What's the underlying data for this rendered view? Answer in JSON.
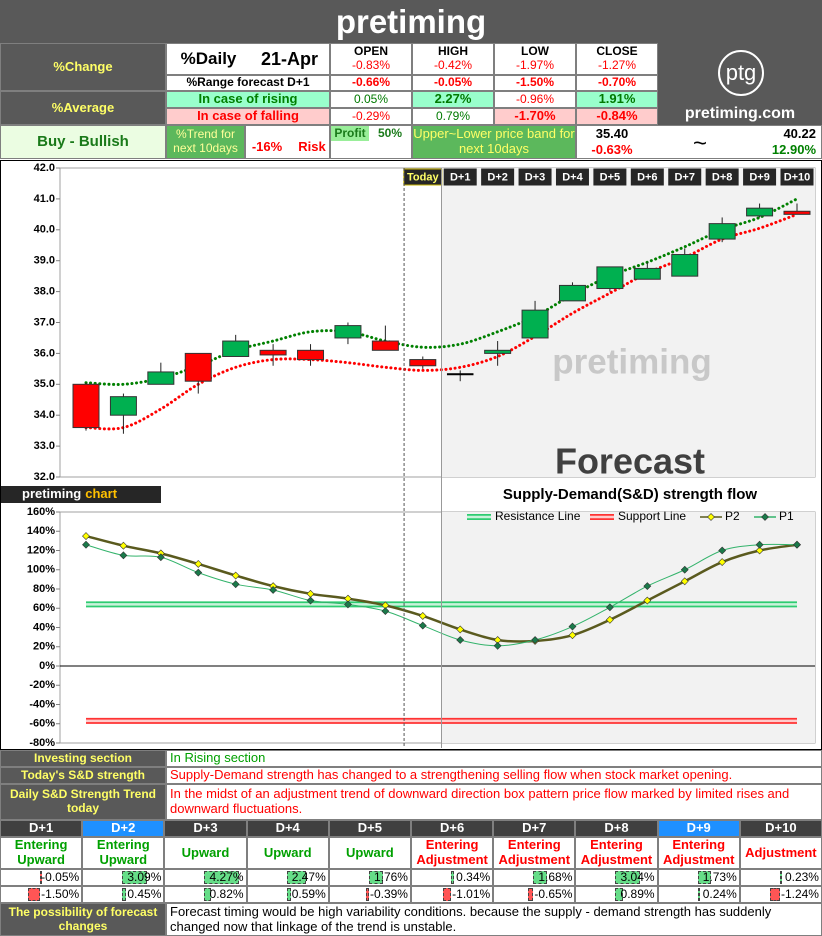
{
  "header": {
    "title": "pretiming"
  },
  "summary": {
    "change_label": "%Change",
    "average_label": "%Average",
    "daily_label": "%Daily",
    "date": "21-Apr",
    "columns": [
      "OPEN",
      "HIGH",
      "LOW",
      "CLOSE"
    ],
    "daily": [
      "-0.83%",
      "-0.42%",
      "-1.97%",
      "-1.27%"
    ],
    "range_label": "%Range forecast D+1",
    "range": [
      "-0.66%",
      "-0.05%",
      "-1.50%",
      "-0.70%"
    ],
    "rising_label": "In case of rising",
    "rising": [
      "0.05%",
      "2.27%",
      "-0.96%",
      "1.91%"
    ],
    "falling_label": "In case of falling",
    "falling": [
      "-0.29%",
      "0.79%",
      "-1.70%",
      "-0.84%"
    ]
  },
  "logo": {
    "mark": "ptg",
    "site": "pretiming.com"
  },
  "outlook": {
    "signal": "Buy - Bullish",
    "trend_label": "%Trend for next 10days",
    "risk_value": "-16%",
    "risk_label": "Risk",
    "profit_label": "Profit",
    "profit_value": "50%",
    "band_label": "Upper~Lower price band for next 10days",
    "lower": "35.40",
    "lower_change": "-0.63%",
    "separator": "~",
    "upper": "40.22",
    "upper_change": "12.90%"
  },
  "chart_data": [
    {
      "type": "candlestick",
      "categories": [
        null,
        null,
        null,
        null,
        null,
        null,
        null,
        null,
        null,
        "Today",
        "D+1",
        "D+2",
        "D+3",
        "D+4",
        "D+5",
        "D+6",
        "D+7",
        "D+8",
        "D+9",
        "D+10"
      ],
      "open": [
        35.0,
        34.0,
        35.0,
        36.0,
        35.9,
        36.1,
        36.1,
        36.5,
        36.4,
        35.8,
        35.35,
        36.0,
        36.5,
        37.7,
        38.1,
        38.4,
        38.5,
        39.7,
        40.45,
        40.6
      ],
      "high": [
        35.05,
        34.7,
        35.7,
        36.0,
        36.6,
        36.3,
        36.3,
        37.0,
        36.9,
        35.9,
        35.45,
        36.4,
        37.7,
        38.3,
        38.8,
        38.95,
        39.4,
        40.4,
        40.85,
        40.85
      ],
      "low": [
        33.5,
        33.4,
        35.0,
        34.7,
        35.9,
        35.6,
        35.6,
        36.3,
        36.1,
        35.5,
        35.1,
        35.6,
        36.5,
        37.7,
        38.0,
        38.4,
        38.5,
        39.6,
        40.4,
        40.5
      ],
      "close": [
        33.6,
        34.6,
        35.4,
        35.1,
        36.4,
        35.95,
        35.8,
        36.9,
        36.1,
        35.6,
        35.35,
        36.1,
        37.4,
        38.2,
        38.8,
        38.75,
        39.2,
        40.2,
        40.7,
        40.5
      ],
      "up_color": "#00b050",
      "down_color": "#ff0000",
      "flat_color": "#000000",
      "series": [
        {
          "color": "#008000",
          "values": [
            35.05,
            35.0,
            35.2,
            35.6,
            36.1,
            36.4,
            36.7,
            36.7,
            36.4,
            36.2,
            36.3,
            36.7,
            37.2,
            37.9,
            38.5,
            38.95,
            39.45,
            40.0,
            40.4,
            41.0
          ]
        },
        {
          "color": "#ff0000",
          "values": [
            33.6,
            33.6,
            34.2,
            35.0,
            35.55,
            35.8,
            35.8,
            35.7,
            35.55,
            35.45,
            35.55,
            35.9,
            36.55,
            37.3,
            37.95,
            38.6,
            39.1,
            39.7,
            40.05,
            40.5
          ]
        }
      ],
      "ylim": [
        32,
        42
      ],
      "yticks": [
        {
          "value": 32,
          "label": "32.0"
        },
        {
          "value": 33,
          "label": "33.0"
        },
        {
          "value": 34,
          "label": "34.0"
        },
        {
          "value": 35,
          "label": "35.0"
        },
        {
          "value": 36,
          "label": "36.0"
        },
        {
          "value": 37,
          "label": "37.0"
        },
        {
          "value": 38,
          "label": "38.0"
        },
        {
          "value": 39,
          "label": "39.0"
        },
        {
          "value": 40,
          "label": "40.0"
        },
        {
          "value": 41,
          "label": "41.0"
        },
        {
          "value": 42,
          "label": "42.0"
        }
      ],
      "watermark": "pretiming",
      "annotation": "Forecast"
    },
    {
      "type": "line",
      "title": "Supply-Demand(S&D) strength flow",
      "label": "pretiming",
      "label_suffix": "chart",
      "series": [
        {
          "name": "Resistance Line",
          "color": "#2ecc71",
          "style": "double",
          "values": [
            64,
            64,
            64,
            64,
            64,
            64,
            64,
            64,
            64,
            64,
            64,
            64,
            64,
            64,
            64,
            64,
            64,
            64,
            64,
            64
          ]
        },
        {
          "name": "Support Line",
          "color": "#ff3333",
          "style": "double",
          "values": [
            -57,
            -57,
            -57,
            -57,
            -57,
            -57,
            -57,
            -57,
            -57,
            -57,
            -57,
            -57,
            -57,
            -57,
            -57,
            -57,
            -57,
            -57,
            -57,
            -57
          ]
        },
        {
          "name": "P2",
          "color": "#5a5a1e",
          "marker_color": "#ffff00",
          "values": [
            135,
            125,
            117,
            106,
            94,
            83,
            75,
            70,
            63,
            52,
            38,
            27,
            26,
            32,
            48,
            68,
            88,
            108,
            120,
            126
          ]
        },
        {
          "name": "P1",
          "color": "#33b36b",
          "marker_color": "#1a7a4a",
          "values": [
            126,
            115,
            113,
            97,
            85,
            79,
            68,
            64,
            57,
            42,
            27,
            21,
            27,
            41,
            61,
            83,
            100,
            120,
            126,
            126
          ]
        }
      ],
      "ylim": [
        -80,
        160
      ],
      "yticks": [
        {
          "value": -80,
          "label": "-80%"
        },
        {
          "value": -60,
          "label": "-60%"
        },
        {
          "value": -40,
          "label": "-40%"
        },
        {
          "value": -20,
          "label": "-20%"
        },
        {
          "value": 0,
          "label": "0%"
        },
        {
          "value": 20,
          "label": "20%"
        },
        {
          "value": 40,
          "label": "40%"
        },
        {
          "value": 60,
          "label": "60%"
        },
        {
          "value": 80,
          "label": "80%"
        },
        {
          "value": 100,
          "label": "100%"
        },
        {
          "value": 120,
          "label": "120%"
        },
        {
          "value": 140,
          "label": "140%"
        },
        {
          "value": 160,
          "label": "160%"
        }
      ]
    }
  ],
  "analysis": {
    "rows": [
      {
        "label": "Investing section",
        "text": "In Rising section",
        "color": "#00a000"
      },
      {
        "label": "Today's S&D strength",
        "text": "Supply-Demand strength has changed to a strengthening selling flow when stock market opening.",
        "color": "#ff0000"
      },
      {
        "label": "Daily S&D Strength Trend today",
        "text": "In the midst of an adjustment trend of downward direction box pattern price flow marked by limited rises and downward fluctuations.",
        "color": "#ff0000"
      }
    ]
  },
  "forecast_table": {
    "days": [
      "D+1",
      "D+2",
      "D+3",
      "D+4",
      "D+5",
      "D+6",
      "D+7",
      "D+8",
      "D+9",
      "D+10"
    ],
    "day_colors": [
      "#404040",
      "#1e90ff",
      "#404040",
      "#404040",
      "#404040",
      "#404040",
      "#404040",
      "#404040",
      "#1e90ff",
      "#404040"
    ],
    "labels": [
      "Entering Upward",
      "Entering Upward",
      "Upward",
      "Upward",
      "Upward",
      "Entering Adjustment",
      "Entering Adjustment",
      "Entering Adjustment",
      "Entering Adjustment",
      "Adjustment"
    ],
    "label_colors": [
      "#00a000",
      "#00a000",
      "#00a000",
      "#00a000",
      "#00a000",
      "#ff0000",
      "#ff0000",
      "#ff0000",
      "#ff0000",
      "#ff0000"
    ],
    "up_values": [
      -0.05,
      3.09,
      4.27,
      2.47,
      1.76,
      0.34,
      1.68,
      3.04,
      1.73,
      0.23
    ],
    "up_labels": [
      "-0.05%",
      "3.09%",
      "4.27%",
      "2.47%",
      "1.76%",
      "0.34%",
      "1.68%",
      "3.04%",
      "1.73%",
      "0.23%"
    ],
    "down_values": [
      -1.5,
      0.45,
      0.82,
      0.59,
      -0.39,
      -1.01,
      -0.65,
      0.89,
      0.24,
      -1.24
    ],
    "down_labels": [
      "-1.50%",
      "0.45%",
      "0.82%",
      "0.59%",
      "-0.39%",
      "-1.01%",
      "-0.65%",
      "0.89%",
      "0.24%",
      "-1.24%"
    ],
    "bar_up_color": "#66dd88",
    "bar_down_color": "#ff5555"
  },
  "footer": {
    "label": "The possibility of forecast changes",
    "text": "Forecast timing would be high variability conditions. because the supply - demand strength has suddenly changed now that linkage of the trend is unstable."
  }
}
